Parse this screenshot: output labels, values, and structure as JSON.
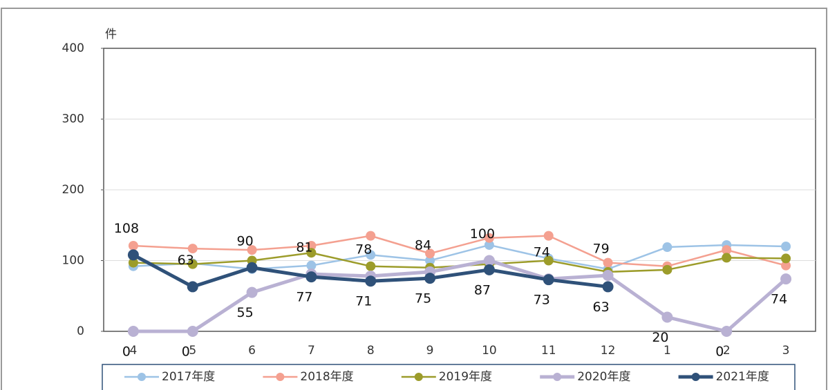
{
  "chart_data": {
    "type": "line",
    "y_label": "件",
    "categories": [
      "4",
      "5",
      "6",
      "7",
      "8",
      "9",
      "10",
      "11",
      "12",
      "1",
      "2",
      "3"
    ],
    "ylim": [
      0,
      400
    ],
    "yticks": [
      0,
      100,
      200,
      300,
      400
    ],
    "grid": true,
    "legend": "bottom",
    "series": [
      {
        "name": "2017年度",
        "color": "#9dc3e6",
        "width": 2.5,
        "values": [
          92,
          96,
          88,
          93,
          108,
          100,
          122,
          103,
          88,
          119,
          122,
          120
        ]
      },
      {
        "name": "2018年度",
        "color": "#f4a090",
        "width": 2.5,
        "values": [
          121,
          117,
          115,
          121,
          135,
          110,
          132,
          135,
          97,
          92,
          115,
          93
        ]
      },
      {
        "name": "2019年度",
        "color": "#9c9c2a",
        "width": 2.5,
        "values": [
          97,
          95,
          100,
          111,
          92,
          90,
          95,
          100,
          84,
          87,
          104,
          103
        ]
      },
      {
        "name": "2020年度",
        "color": "#b9b1d3",
        "width": 5,
        "show_labels": true,
        "values": [
          0,
          0,
          55,
          81,
          78,
          84,
          100,
          74,
          79,
          20,
          0,
          74
        ]
      },
      {
        "name": "2021年度",
        "color": "#2f5179",
        "width": 5,
        "show_labels": true,
        "values": [
          108,
          63,
          90,
          77,
          71,
          75,
          87,
          73,
          63,
          null,
          null,
          null
        ]
      }
    ]
  }
}
